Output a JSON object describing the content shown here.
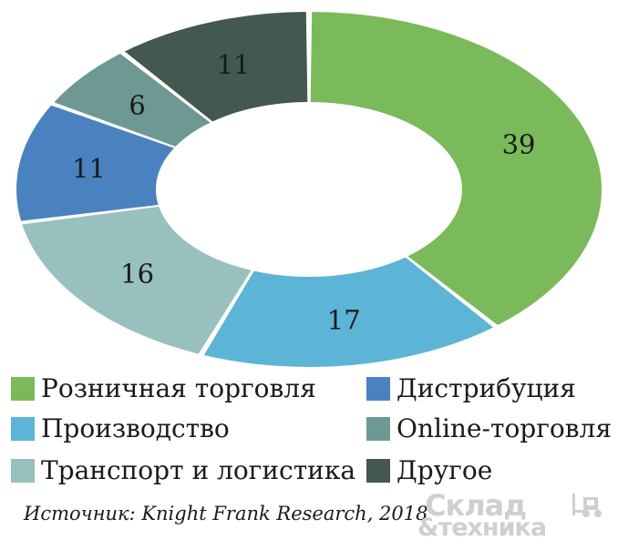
{
  "chart_data": {
    "type": "pie",
    "style": "donut",
    "categories": [
      "Розничная торговля",
      "Производство",
      "Транспорт и логистика",
      "Дистрибуция",
      "Online-торговля",
      "Другое"
    ],
    "values": [
      39,
      17,
      16,
      11,
      6,
      11
    ],
    "colors": [
      "#7aba5a",
      "#5cb4d6",
      "#98c0be",
      "#4a82bf",
      "#6e9892",
      "#43584f"
    ],
    "data_labels": [
      "39",
      "17",
      "16",
      "11",
      "6",
      "11"
    ],
    "legend_placement": "bottom"
  },
  "legend": {
    "items": [
      {
        "label": "Розничная торговля",
        "color": "#7aba5a"
      },
      {
        "label": "Дистрибуция",
        "color": "#4a82bf"
      },
      {
        "label": "Производство",
        "color": "#5cb4d6"
      },
      {
        "label": "Online-торговля",
        "color": "#6e9892"
      },
      {
        "label": "Транспорт и логистика",
        "color": "#98c0be"
      },
      {
        "label": "Другое",
        "color": "#43584f"
      }
    ]
  },
  "source": "Источник: Knight Frank Research, 2018",
  "logo": {
    "line1": "Склад",
    "line2": "&техника",
    "icon": "forklift-icon"
  }
}
